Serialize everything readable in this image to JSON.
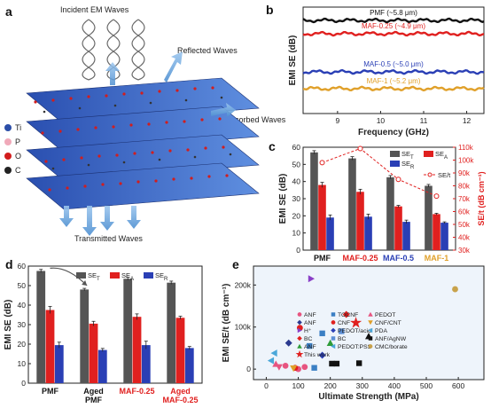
{
  "panel_letters": {
    "a": "a",
    "b": "b",
    "c": "c",
    "d": "d",
    "e": "e"
  },
  "schematic": {
    "incident": "Incident EM Waves",
    "reflected": "Reflected Waves",
    "absorbed": "Absorbed Waves",
    "transmitted": "Transmitted Waves",
    "atoms": [
      {
        "label": "Ti",
        "color": "#2b4ea8"
      },
      {
        "label": "P",
        "color": "#f0a9b9"
      },
      {
        "label": "O",
        "color": "#d21d1d"
      },
      {
        "label": "C",
        "color": "#222222"
      }
    ]
  },
  "chart_data": [
    {
      "panel": "b",
      "type": "line",
      "xlabel": "Frequency (GHz)",
      "ylabel": "EMI SE (dB)",
      "xlim": [
        8.2,
        12.4
      ],
      "xticks": [
        9,
        10,
        11,
        12
      ],
      "series": [
        {
          "name": "PMF (~5.8 μm)",
          "color": "#111111",
          "level": 58
        },
        {
          "name": "MAF-0.25 (~4.9 μm)",
          "color": "#e0201f",
          "level": 54
        },
        {
          "name": "MAF-0.5 (~5.0 μm)",
          "color": "#2a3fb5",
          "level": 42.5
        },
        {
          "name": "MAF-1 (~5.2 μm)",
          "color": "#e0a02a",
          "level": 37.5
        }
      ]
    },
    {
      "panel": "c",
      "type": "bar",
      "categories": [
        "PMF",
        "MAF-0.25",
        "MAF-0.5",
        "MAF-1"
      ],
      "category_colors": [
        "#111111",
        "#e0201f",
        "#2a3fb5",
        "#e0a02a"
      ],
      "ylabel": "EMI SE (dB)",
      "y2label": "SE/t (dB cm⁻¹)",
      "ylim": [
        0,
        60
      ],
      "yticks": [
        0,
        10,
        20,
        30,
        40,
        50,
        60
      ],
      "y2lim": [
        30000,
        110000
      ],
      "y2ticks": [
        "30k",
        "40k",
        "50k",
        "60k",
        "70k",
        "80k",
        "90k",
        "100k",
        "110k"
      ],
      "series": [
        {
          "name": "SE",
          "sub": "T",
          "color": "#555555",
          "values": [
            57,
            53.5,
            42.5,
            37.5
          ],
          "err": [
            1,
            1,
            1,
            0.8
          ]
        },
        {
          "name": "SE",
          "sub": "A",
          "color": "#e0201f",
          "values": [
            38,
            34,
            25.5,
            21
          ],
          "err": [
            1.5,
            1.5,
            0.6,
            0.5
          ]
        },
        {
          "name": "SE",
          "sub": "R",
          "color": "#2a3fb5",
          "values": [
            19,
            19.5,
            16.5,
            16
          ],
          "err": [
            1.5,
            1.5,
            1,
            0.5
          ]
        },
        {
          "name": "SE/t",
          "color": "#e0201f",
          "line": true,
          "values": [
            98000,
            109000,
            85000,
            72000
          ]
        }
      ]
    },
    {
      "panel": "d",
      "type": "bar",
      "categories": [
        "PMF",
        "Aged\nPMF",
        "MAF-0.25",
        "Aged\nMAF-0.25"
      ],
      "category_colors": [
        "#111111",
        "#111111",
        "#e0201f",
        "#e0201f"
      ],
      "ylabel": "EMI SE (dB)",
      "ylim": [
        0,
        60
      ],
      "yticks": [
        0,
        10,
        20,
        30,
        40,
        50,
        60
      ],
      "series": [
        {
          "name": "SE",
          "sub": "T",
          "color": "#555555",
          "values": [
            57.5,
            48,
            53.5,
            51.5
          ],
          "err": [
            0.8,
            0.6,
            0.8,
            0.8
          ]
        },
        {
          "name": "SE",
          "sub": "A",
          "color": "#e0201f",
          "values": [
            37.5,
            30.5,
            34,
            33.5
          ],
          "err": [
            1.8,
            1.2,
            1.5,
            0.8
          ]
        },
        {
          "name": "SE",
          "sub": "R",
          "color": "#2a3fb5",
          "values": [
            19.5,
            17,
            19.5,
            18
          ],
          "err": [
            1.5,
            0.8,
            2,
            0.8
          ]
        }
      ]
    },
    {
      "panel": "e",
      "type": "scatter",
      "xlabel": "Ultimate Strength (MPa)",
      "ylabel": "EMI SE/t (dB cm⁻¹)",
      "xlim": [
        -40,
        680
      ],
      "xticks": [
        0,
        100,
        200,
        300,
        400,
        500,
        600
      ],
      "ylim": [
        -25000,
        245000
      ],
      "yticks": [
        0,
        100000,
        200000
      ],
      "yticklabels": [
        "0",
        "100k",
        "200k"
      ],
      "series": [
        {
          "name": "ANF",
          "marker": "circle",
          "color": "#e75480",
          "points": [
            [
              60,
              8000
            ],
            [
              100,
              0
            ],
            [
              120,
              5000
            ]
          ]
        },
        {
          "name": "TOCNF",
          "marker": "square",
          "color": "#3b7fc4",
          "points": [
            [
              135,
              55000
            ],
            [
              150,
              3000
            ],
            [
              175,
              85000
            ]
          ]
        },
        {
          "name": "PEDOT",
          "marker": "triangle-up",
          "color": "#e75480",
          "points": [
            [
              30,
              12000
            ]
          ]
        },
        {
          "name": "ANF",
          "marker": "diamond",
          "color": "#2b3a8f",
          "points": [
            [
              70,
              62000
            ]
          ]
        },
        {
          "name": "CNF",
          "marker": "circle",
          "color": "#e0201f",
          "points": [
            [
              90,
              3000
            ],
            [
              105,
              98000
            ]
          ]
        },
        {
          "name": "CNF/CNT",
          "marker": "triangle-down",
          "color": "#e0a02a",
          "points": [
            [
              85,
              2000
            ]
          ]
        },
        {
          "name": "H⁺",
          "marker": "triangle-right",
          "color": "#8a3fc7",
          "points": [
            [
              140,
              215000
            ]
          ]
        },
        {
          "name": "PEDOT/acid",
          "marker": "diamond",
          "color": "#2a3fb5",
          "points": [
            [
              175,
              33000
            ]
          ]
        },
        {
          "name": "PDA",
          "marker": "triangle-left",
          "color": "#4aa7d9",
          "points": [
            [
              25,
              38000
            ]
          ]
        },
        {
          "name": "BC",
          "marker": "diamond",
          "color": "#e0201f",
          "points": [
            [
              250,
              130000
            ]
          ]
        },
        {
          "name": "BC",
          "marker": "square",
          "color": "#5c8fd6",
          "points": [
            [
              235,
              90000
            ]
          ]
        },
        {
          "name": "ANF/AgNW",
          "marker": "square",
          "color": "#111111",
          "points": [
            [
              205,
              13000
            ],
            [
              220,
              13000
            ],
            [
              290,
              14000
            ]
          ]
        },
        {
          "name": "ANF",
          "marker": "triangle-up",
          "color": "#2e9c3a",
          "points": [
            [
              200,
              62000
            ]
          ]
        },
        {
          "name": "PEDOT:PSS",
          "marker": "triangle-left",
          "color": "#4aa7d9",
          "points": [
            [
              15,
              20000
            ]
          ]
        },
        {
          "name": "CMC/borate",
          "marker": "circle",
          "color": "#c8a24b",
          "points": [
            [
              590,
              190000
            ]
          ]
        },
        {
          "name": "This work",
          "marker": "star",
          "color": "#e0201f",
          "points": [
            [
              280,
              110000
            ]
          ]
        },
        {
          "name": "",
          "marker": "triangle-up",
          "color": "#111111",
          "points": [
            [
              320,
              78000
            ]
          ]
        },
        {
          "name": "",
          "marker": "triangle-down",
          "color": "#e75480",
          "points": [
            [
              40,
              5000
            ]
          ]
        }
      ]
    }
  ]
}
